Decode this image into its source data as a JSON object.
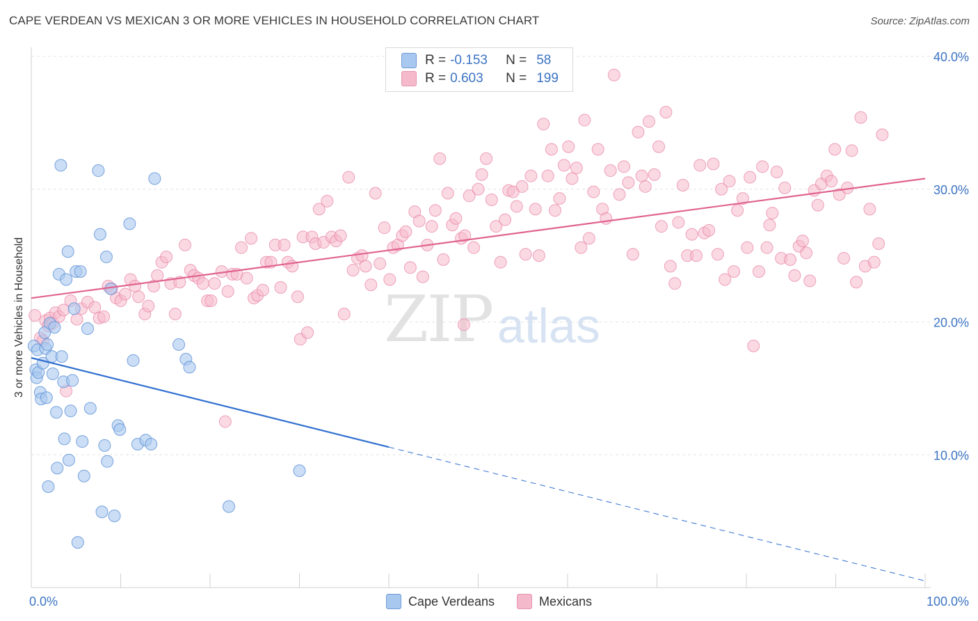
{
  "title": "CAPE VERDEAN VS MEXICAN 3 OR MORE VEHICLES IN HOUSEHOLD CORRELATION CHART",
  "source": "Source: ZipAtlas.com",
  "watermark": {
    "zip": "ZIP",
    "atlas": "atlas"
  },
  "legend": {
    "rows": [
      {
        "r_label": "R =",
        "r_value": "-0.153",
        "n_label": "N =",
        "n_value": "58",
        "color": "#a9c8ef"
      },
      {
        "r_label": "R =",
        "r_value": "0.603",
        "n_label": "N =",
        "n_value": "199",
        "color": "#f5b9cc"
      }
    ]
  },
  "bottom_legend": [
    {
      "label": "Cape Verdeans",
      "color": "#a9c8ef"
    },
    {
      "label": "Mexicans",
      "color": "#f5b9cc"
    }
  ],
  "chart_data": {
    "type": "scatter",
    "title": "CAPE VERDEAN VS MEXICAN 3 OR MORE VEHICLES IN HOUSEHOLD CORRELATION CHART",
    "xlabel": "",
    "ylabel": "3 or more Vehicles in Household",
    "xlim": [
      0,
      100
    ],
    "ylim": [
      0,
      40
    ],
    "x_tick_labels": [
      "0.0%",
      "100.0%"
    ],
    "y_ticks": [
      10,
      20,
      30,
      40
    ],
    "y_tick_labels": [
      "10.0%",
      "20.0%",
      "30.0%",
      "40.0%"
    ],
    "grid": true,
    "legend_position": "top-center",
    "colors": {
      "cape": "#a9c8ef",
      "cape_stroke": "#5a8fd6",
      "cape_line": "#2f6fd0",
      "mex": "#f5b9cc",
      "mex_stroke": "#e77fa3",
      "mex_line": "#e0638f"
    },
    "series": [
      {
        "name": "Cape Verdeans",
        "trend": {
          "x_start": 0,
          "y_start": 17.3,
          "x_solid_end": 40,
          "x_end": 100,
          "y_end": 0.5
        },
        "points": [
          [
            0.3,
            18.2
          ],
          [
            0.5,
            16.4
          ],
          [
            0.6,
            15.8
          ],
          [
            0.7,
            17.9
          ],
          [
            0.8,
            16.2
          ],
          [
            1.0,
            14.7
          ],
          [
            1.1,
            14.2
          ],
          [
            1.3,
            16.9
          ],
          [
            1.5,
            19.2
          ],
          [
            1.6,
            18.0
          ],
          [
            1.7,
            14.3
          ],
          [
            1.8,
            18.3
          ],
          [
            1.9,
            7.6
          ],
          [
            2.1,
            19.9
          ],
          [
            2.3,
            17.4
          ],
          [
            2.4,
            16.1
          ],
          [
            2.6,
            19.6
          ],
          [
            2.8,
            13.2
          ],
          [
            2.9,
            9.0
          ],
          [
            3.1,
            23.6
          ],
          [
            3.3,
            31.8
          ],
          [
            3.4,
            17.4
          ],
          [
            3.6,
            15.5
          ],
          [
            3.7,
            11.2
          ],
          [
            3.9,
            23.2
          ],
          [
            4.1,
            25.3
          ],
          [
            4.2,
            9.6
          ],
          [
            4.4,
            13.3
          ],
          [
            4.6,
            15.6
          ],
          [
            4.8,
            21.0
          ],
          [
            5.0,
            23.8
          ],
          [
            5.2,
            3.4
          ],
          [
            5.5,
            23.8
          ],
          [
            5.7,
            11.0
          ],
          [
            5.9,
            8.4
          ],
          [
            6.3,
            19.5
          ],
          [
            6.6,
            13.5
          ],
          [
            7.5,
            31.4
          ],
          [
            7.7,
            26.6
          ],
          [
            7.9,
            5.7
          ],
          [
            8.2,
            10.7
          ],
          [
            8.4,
            24.9
          ],
          [
            8.5,
            9.5
          ],
          [
            8.9,
            22.5
          ],
          [
            9.3,
            5.4
          ],
          [
            9.7,
            12.2
          ],
          [
            9.9,
            11.9
          ],
          [
            11.0,
            27.4
          ],
          [
            11.4,
            17.1
          ],
          [
            11.9,
            10.8
          ],
          [
            12.8,
            11.1
          ],
          [
            13.4,
            10.8
          ],
          [
            13.8,
            30.8
          ],
          [
            16.5,
            18.3
          ],
          [
            17.3,
            17.2
          ],
          [
            17.7,
            16.6
          ],
          [
            22.1,
            6.1
          ],
          [
            30.0,
            8.8
          ]
        ]
      },
      {
        "name": "Mexicans",
        "trend": {
          "x_start": 0,
          "y_start": 21.8,
          "x_end": 100,
          "y_end": 30.8
        },
        "points": [
          [
            0.4,
            20.5
          ],
          [
            1.0,
            18.8
          ],
          [
            1.3,
            18.6
          ],
          [
            1.6,
            20.1
          ],
          [
            1.9,
            19.7
          ],
          [
            2.1,
            20.3
          ],
          [
            2.4,
            19.9
          ],
          [
            2.7,
            20.7
          ],
          [
            3.1,
            20.4
          ],
          [
            3.6,
            20.9
          ],
          [
            3.9,
            14.8
          ],
          [
            4.4,
            21.6
          ],
          [
            5.1,
            20.2
          ],
          [
            5.6,
            21.0
          ],
          [
            6.3,
            21.5
          ],
          [
            7.1,
            21.1
          ],
          [
            7.6,
            20.3
          ],
          [
            8.1,
            20.4
          ],
          [
            8.6,
            22.7
          ],
          [
            9.0,
            22.5
          ],
          [
            9.5,
            21.8
          ],
          [
            10.0,
            21.6
          ],
          [
            10.5,
            22.1
          ],
          [
            11.1,
            23.2
          ],
          [
            11.6,
            22.7
          ],
          [
            12.0,
            21.9
          ],
          [
            12.7,
            20.6
          ],
          [
            13.1,
            21.2
          ],
          [
            13.7,
            22.7
          ],
          [
            14.1,
            23.5
          ],
          [
            14.6,
            24.5
          ],
          [
            15.1,
            24.9
          ],
          [
            15.6,
            22.9
          ],
          [
            16.1,
            20.6
          ],
          [
            16.6,
            23.0
          ],
          [
            17.2,
            25.8
          ],
          [
            17.8,
            23.9
          ],
          [
            18.2,
            23.5
          ],
          [
            18.7,
            23.3
          ],
          [
            19.2,
            22.9
          ],
          [
            19.7,
            21.6
          ],
          [
            20.1,
            21.6
          ],
          [
            20.5,
            22.9
          ],
          [
            21.3,
            23.8
          ],
          [
            21.7,
            12.5
          ],
          [
            22.0,
            22.3
          ],
          [
            22.5,
            23.6
          ],
          [
            23.0,
            23.6
          ],
          [
            23.5,
            25.6
          ],
          [
            24.1,
            23.3
          ],
          [
            24.6,
            26.3
          ],
          [
            24.9,
            21.8
          ],
          [
            25.3,
            22.0
          ],
          [
            25.9,
            22.4
          ],
          [
            26.3,
            24.5
          ],
          [
            26.8,
            24.5
          ],
          [
            27.3,
            25.8
          ],
          [
            27.9,
            22.6
          ],
          [
            28.3,
            25.8
          ],
          [
            28.7,
            24.5
          ],
          [
            29.2,
            24.2
          ],
          [
            29.8,
            21.9
          ],
          [
            30.1,
            18.7
          ],
          [
            30.4,
            26.4
          ],
          [
            30.9,
            19.2
          ],
          [
            31.4,
            26.4
          ],
          [
            31.8,
            25.9
          ],
          [
            32.2,
            28.5
          ],
          [
            32.7,
            26.0
          ],
          [
            33.1,
            29.1
          ],
          [
            33.6,
            26.4
          ],
          [
            34.1,
            26.1
          ],
          [
            34.6,
            26.5
          ],
          [
            35.0,
            20.6
          ],
          [
            35.5,
            30.9
          ],
          [
            36.0,
            23.9
          ],
          [
            36.5,
            24.8
          ],
          [
            37.0,
            25.0
          ],
          [
            37.4,
            24.2
          ],
          [
            38.0,
            22.8
          ],
          [
            38.5,
            29.7
          ],
          [
            39.0,
            24.4
          ],
          [
            39.5,
            27.1
          ],
          [
            40.1,
            23.2
          ],
          [
            40.5,
            25.6
          ],
          [
            41.0,
            25.8
          ],
          [
            41.5,
            26.5
          ],
          [
            41.9,
            26.8
          ],
          [
            42.4,
            24.1
          ],
          [
            42.9,
            28.3
          ],
          [
            43.4,
            27.6
          ],
          [
            43.8,
            23.4
          ],
          [
            44.3,
            25.8
          ],
          [
            44.8,
            27.2
          ],
          [
            45.2,
            28.4
          ],
          [
            45.7,
            32.3
          ],
          [
            46.1,
            24.7
          ],
          [
            46.6,
            29.7
          ],
          [
            47.1,
            27.3
          ],
          [
            47.5,
            27.8
          ],
          [
            48.1,
            26.3
          ],
          [
            48.5,
            26.5
          ],
          [
            49.0,
            29.5
          ],
          [
            49.5,
            25.6
          ],
          [
            50.0,
            30.0
          ],
          [
            50.4,
            31.1
          ],
          [
            50.9,
            32.3
          ],
          [
            51.5,
            29.2
          ],
          [
            52.0,
            27.2
          ],
          [
            52.5,
            24.5
          ],
          [
            53.0,
            27.7
          ],
          [
            53.4,
            29.9
          ],
          [
            53.9,
            29.8
          ],
          [
            54.3,
            28.7
          ],
          [
            54.9,
            30.2
          ],
          [
            55.3,
            25.1
          ],
          [
            55.9,
            31.0
          ],
          [
            56.4,
            28.5
          ],
          [
            56.8,
            25.0
          ],
          [
            57.3,
            34.9
          ],
          [
            57.8,
            31.0
          ],
          [
            58.2,
            33.0
          ],
          [
            58.6,
            28.4
          ],
          [
            59.1,
            29.3
          ],
          [
            59.6,
            31.8
          ],
          [
            60.1,
            33.2
          ],
          [
            60.5,
            30.8
          ],
          [
            61.0,
            31.6
          ],
          [
            61.5,
            25.6
          ],
          [
            61.9,
            35.2
          ],
          [
            62.4,
            26.3
          ],
          [
            62.9,
            29.8
          ],
          [
            63.4,
            33.0
          ],
          [
            63.9,
            28.5
          ],
          [
            64.3,
            27.8
          ],
          [
            64.8,
            31.4
          ],
          [
            65.2,
            38.6
          ],
          [
            65.8,
            29.6
          ],
          [
            66.3,
            31.7
          ],
          [
            66.8,
            30.5
          ],
          [
            67.3,
            25.1
          ],
          [
            67.9,
            34.3
          ],
          [
            68.3,
            31.0
          ],
          [
            68.7,
            30.2
          ],
          [
            69.1,
            35.1
          ],
          [
            69.7,
            31.1
          ],
          [
            70.2,
            33.2
          ],
          [
            70.5,
            27.2
          ],
          [
            71.0,
            35.8
          ],
          [
            71.5,
            24.2
          ],
          [
            72.0,
            22.9
          ],
          [
            72.4,
            27.5
          ],
          [
            72.9,
            30.3
          ],
          [
            73.4,
            25.0
          ],
          [
            73.9,
            26.6
          ],
          [
            74.4,
            25.0
          ],
          [
            74.8,
            31.8
          ],
          [
            75.3,
            26.7
          ],
          [
            75.8,
            26.9
          ],
          [
            76.3,
            31.9
          ],
          [
            76.8,
            25.1
          ],
          [
            77.2,
            30.0
          ],
          [
            77.6,
            23.2
          ],
          [
            78.1,
            30.6
          ],
          [
            78.6,
            23.8
          ],
          [
            79.0,
            28.4
          ],
          [
            79.6,
            29.3
          ],
          [
            80.1,
            25.6
          ],
          [
            80.4,
            30.9
          ],
          [
            80.8,
            18.2
          ],
          [
            81.4,
            23.8
          ],
          [
            81.8,
            31.7
          ],
          [
            82.3,
            25.6
          ],
          [
            82.6,
            27.3
          ],
          [
            82.9,
            28.2
          ],
          [
            83.4,
            31.3
          ],
          [
            83.9,
            24.8
          ],
          [
            84.3,
            30.1
          ],
          [
            84.9,
            24.7
          ],
          [
            85.4,
            23.5
          ],
          [
            85.9,
            25.7
          ],
          [
            86.3,
            26.1
          ],
          [
            86.7,
            25.2
          ],
          [
            87.1,
            23.1
          ],
          [
            87.6,
            29.9
          ],
          [
            88.0,
            28.8
          ],
          [
            88.4,
            30.4
          ],
          [
            89.0,
            31.0
          ],
          [
            89.5,
            30.6
          ],
          [
            89.9,
            33.0
          ],
          [
            90.4,
            29.6
          ],
          [
            90.9,
            24.8
          ],
          [
            91.3,
            30.1
          ],
          [
            91.8,
            32.9
          ],
          [
            92.3,
            23.0
          ],
          [
            92.8,
            35.4
          ],
          [
            93.3,
            24.2
          ],
          [
            93.8,
            28.5
          ],
          [
            94.3,
            24.5
          ],
          [
            94.8,
            25.9
          ],
          [
            95.2,
            34.1
          ],
          [
            48.4,
            19.8
          ]
        ]
      }
    ]
  }
}
